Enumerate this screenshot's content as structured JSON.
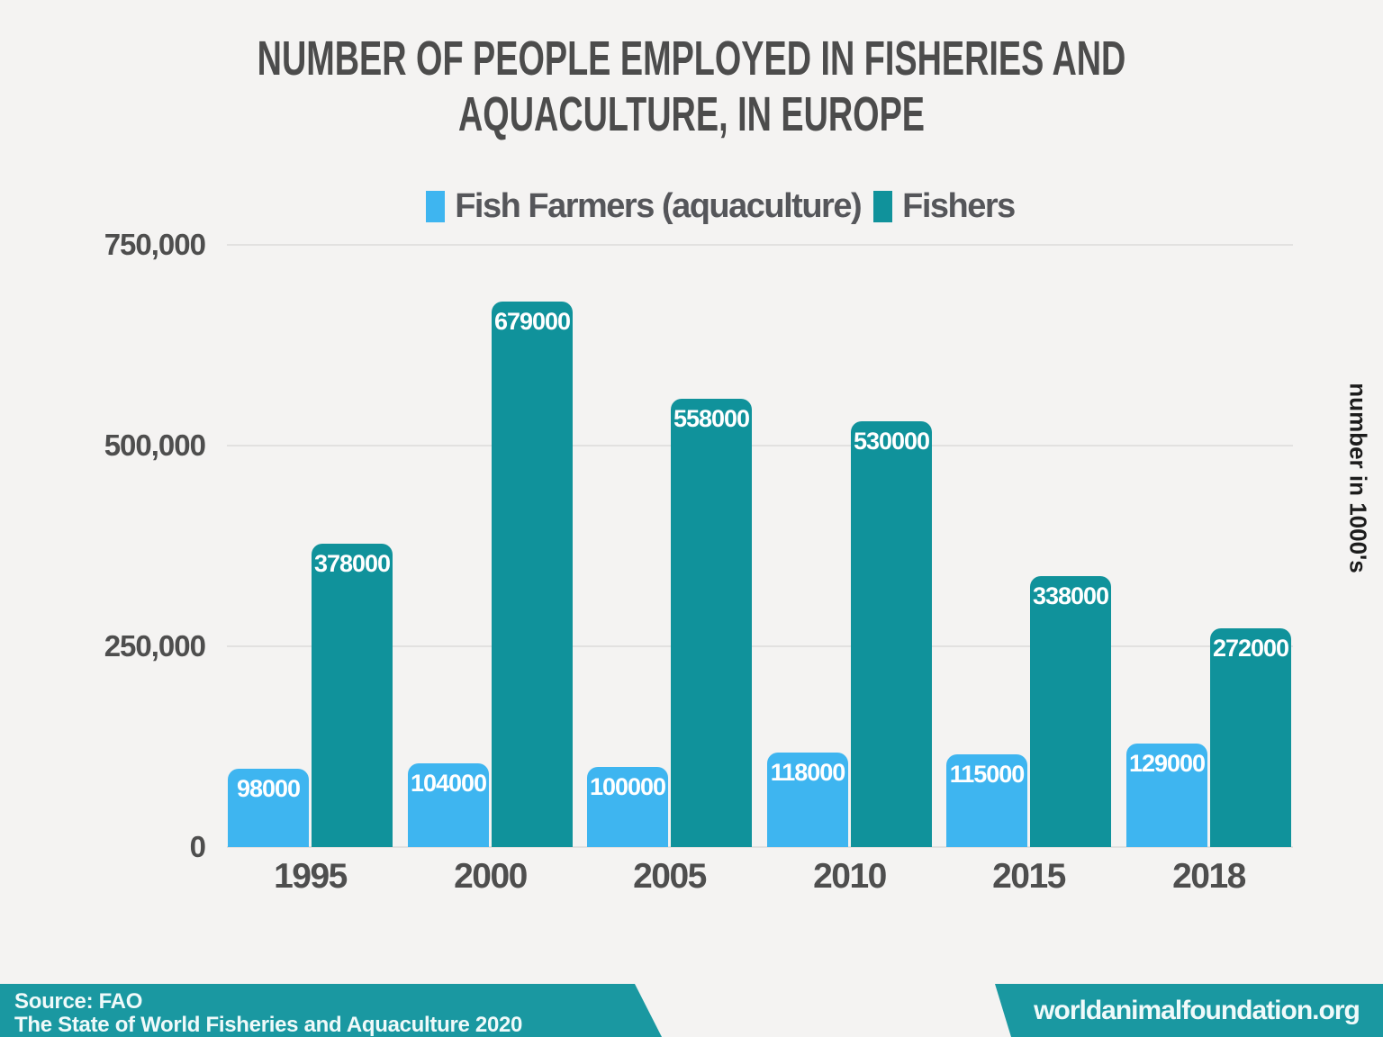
{
  "title": {
    "line1": "NUMBER OF PEOPLE EMPLOYED IN FISHERIES AND",
    "line2": "AQUACULTURE, IN EUROPE"
  },
  "chart_data": {
    "type": "bar",
    "title": "NUMBER OF PEOPLE EMPLOYED IN FISHERIES AND AQUACULTURE, IN EUROPE",
    "categories": [
      "1995",
      "2000",
      "2005",
      "2010",
      "2015",
      "2018"
    ],
    "series": [
      {
        "name": "Fish Farmers (aquaculture)",
        "color": "#3eb5f0",
        "values": [
          98000,
          104000,
          100000,
          118000,
          115000,
          129000
        ]
      },
      {
        "name": "Fishers",
        "color": "#10929b",
        "values": [
          378000,
          679000,
          558000,
          530000,
          338000,
          272000
        ]
      }
    ],
    "ylabel": "number in 1000's",
    "ylim": [
      0,
      750000
    ],
    "yticks": [
      {
        "label": "750,000",
        "value": 750000
      },
      {
        "label": "500,000",
        "value": 500000
      },
      {
        "label": "250,000",
        "value": 250000
      },
      {
        "label": "0",
        "value": 0
      }
    ],
    "grid": true,
    "legend_position": "top",
    "value_labels": "inside-top"
  },
  "footer": {
    "source_line1": "Source: FAO",
    "source_line2": "The State of World Fisheries and Aquaculture 2020",
    "website": "worldanimalfoundation.org"
  },
  "colors": {
    "background": "#f4f3f2",
    "title_text": "#4c4c4c",
    "axis_text": "#4e4e4e",
    "legend_text": "#55565a",
    "gridline": "#e2e1e0",
    "bar_blue": "#3eb5f0",
    "bar_teal": "#10929b",
    "banner": "#1a98a1",
    "banner_text": "#f0fafa",
    "bar_value_text": "#ffffff"
  }
}
